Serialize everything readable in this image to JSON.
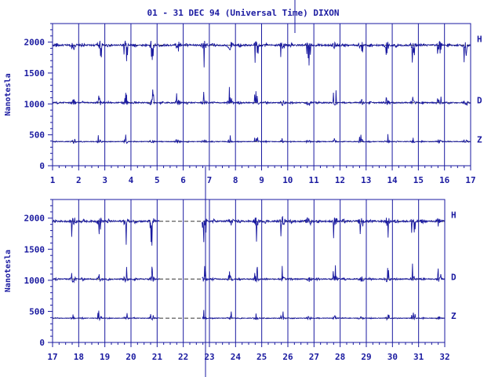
{
  "chart_data": {
    "type": "line",
    "title": "01 - 31 DEC 94 (Universal Time) DIXON",
    "ylabel": "Nanotesla",
    "colors": {
      "trace": "#1a1aa0",
      "baseline": "#333333",
      "background": "#ffffff"
    },
    "grid": "vertical lines at day boundaries",
    "baseline_style": "dashed",
    "series": [
      {
        "name": "H",
        "baseline_nT": 1950
      },
      {
        "name": "D",
        "baseline_nT": 1020
      },
      {
        "name": "Z",
        "baseline_nT": 390
      }
    ],
    "panels": [
      {
        "xlim": [
          1,
          17
        ],
        "ylim": [
          0,
          2300
        ],
        "x_ticks": [
          "1",
          "2",
          "3",
          "4",
          "5",
          "6",
          "7",
          "8",
          "9",
          "10",
          "11",
          "12",
          "13",
          "14",
          "15",
          "16",
          "17"
        ],
        "y_ticks": [
          "0",
          "500",
          "1000",
          "1500",
          "2000"
        ],
        "data_gaps": []
      },
      {
        "xlim": [
          17,
          32
        ],
        "ylim": [
          0,
          2300
        ],
        "x_ticks": [
          "17",
          "18",
          "19",
          "20",
          "21",
          "22",
          "23",
          "24",
          "25",
          "26",
          "27",
          "28",
          "29",
          "30",
          "31",
          "32"
        ],
        "y_ticks": [
          "0",
          "500",
          "1000",
          "1500",
          "2000"
        ],
        "data_gaps": [
          [
            21.1,
            22.7
          ]
        ]
      }
    ]
  }
}
